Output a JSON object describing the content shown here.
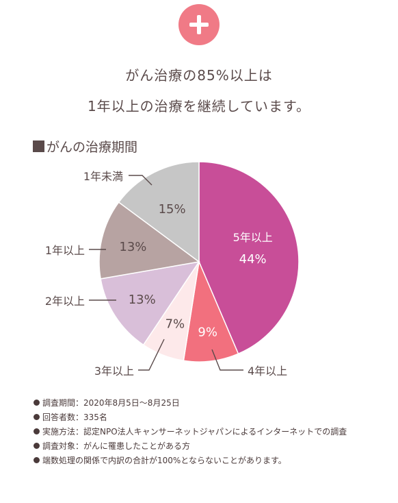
{
  "header": {
    "icon": "plus-icon",
    "accent_color": "#f07a86",
    "line1": "がん治療の85%以上は",
    "line2": "1年以上の治療を継続しています。"
  },
  "section_title": "がんの治療期間",
  "chart_data": {
    "type": "pie",
    "title": "がんの治療期間",
    "start": "top, clockwise",
    "slices": [
      {
        "label": "5年以上",
        "value": 44,
        "value_label": "44%",
        "color": "#c84e98"
      },
      {
        "label": "4年以上",
        "value": 9,
        "value_label": "9%",
        "color": "#f2707e"
      },
      {
        "label": "3年以上",
        "value": 7,
        "value_label": "7%",
        "color": "#fde9ea"
      },
      {
        "label": "2年以上",
        "value": 13,
        "value_label": "13%",
        "color": "#d9bfd9"
      },
      {
        "label": "1年以上",
        "value": 13,
        "value_label": "13%",
        "color": "#b7a3a2"
      },
      {
        "label": "1年未満",
        "value": 15,
        "value_label": "15%",
        "color": "#c6c6c6"
      }
    ]
  },
  "notes": [
    "調査期間：2020年8月5日〜8月25日",
    "回答者数：335名",
    "実施方法：認定NPO法人キャンサーネットジャパンによるインターネットでの調査",
    "調査対象：がんに罹患したことがある方",
    "端数処理の関係で内訳の合計が100%とならないことがあります。"
  ]
}
